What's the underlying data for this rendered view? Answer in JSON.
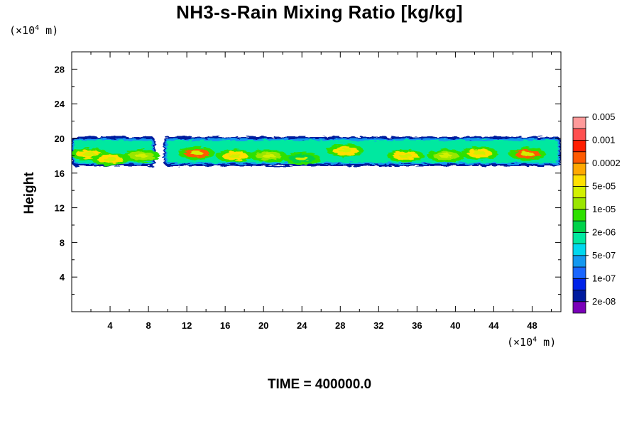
{
  "chart_data": {
    "type": "heatmap",
    "title": "NH3-s-Rain Mixing Ratio [kg/kg]",
    "ylabel": "Height",
    "xlabel": "",
    "x_unit": "(×10⁴ m)",
    "y_unit": "(×10⁴ m)",
    "xlim": [
      0,
      51
    ],
    "ylim": [
      0,
      30
    ],
    "x_ticks": [
      4,
      8,
      12,
      16,
      20,
      24,
      28,
      32,
      36,
      40,
      44,
      48
    ],
    "y_ticks": [
      4,
      8,
      12,
      16,
      20,
      24,
      28
    ],
    "footer": "TIME = 400000.0",
    "grid": false,
    "colorbar": {
      "placement": "right",
      "colors": [
        "#7a00b8",
        "#001a9e",
        "#0022e8",
        "#1a66ff",
        "#1398f0",
        "#00d8ee",
        "#00e8a0",
        "#00d24a",
        "#2ee000",
        "#9ae600",
        "#d2f000",
        "#ffe000",
        "#ffa800",
        "#ff5a00",
        "#ff1e00",
        "#ff5050",
        "#ff9a9a"
      ],
      "labels": [
        "2e-08",
        "1e-07",
        "5e-07",
        "2e-06",
        "1e-05",
        "5e-05",
        "0.0002",
        "0.001",
        "0.005"
      ]
    },
    "cloud_band": {
      "y_base": 16.8,
      "y_top": 20.2,
      "segments": [
        {
          "x_start": 0.0,
          "x_end": 8.7
        },
        {
          "x_start": 9.6,
          "x_end": 51.0
        }
      ],
      "cores": [
        {
          "x": 1.8,
          "y": 18.2,
          "level": "5e-05"
        },
        {
          "x": 4.0,
          "y": 17.6,
          "level": "5e-05"
        },
        {
          "x": 7.3,
          "y": 18.0,
          "level": "1e-05"
        },
        {
          "x": 13.0,
          "y": 18.3,
          "level": "0.0002"
        },
        {
          "x": 17.0,
          "y": 18.0,
          "level": "5e-05"
        },
        {
          "x": 20.5,
          "y": 18.0,
          "level": "1e-05"
        },
        {
          "x": 24.0,
          "y": 17.7,
          "level": "2e-06"
        },
        {
          "x": 28.5,
          "y": 18.6,
          "level": "5e-05"
        },
        {
          "x": 34.8,
          "y": 18.0,
          "level": "5e-05"
        },
        {
          "x": 39.0,
          "y": 18.0,
          "level": "1e-05"
        },
        {
          "x": 42.5,
          "y": 18.3,
          "level": "5e-05"
        },
        {
          "x": 47.5,
          "y": 18.2,
          "level": "0.0002"
        }
      ]
    }
  }
}
